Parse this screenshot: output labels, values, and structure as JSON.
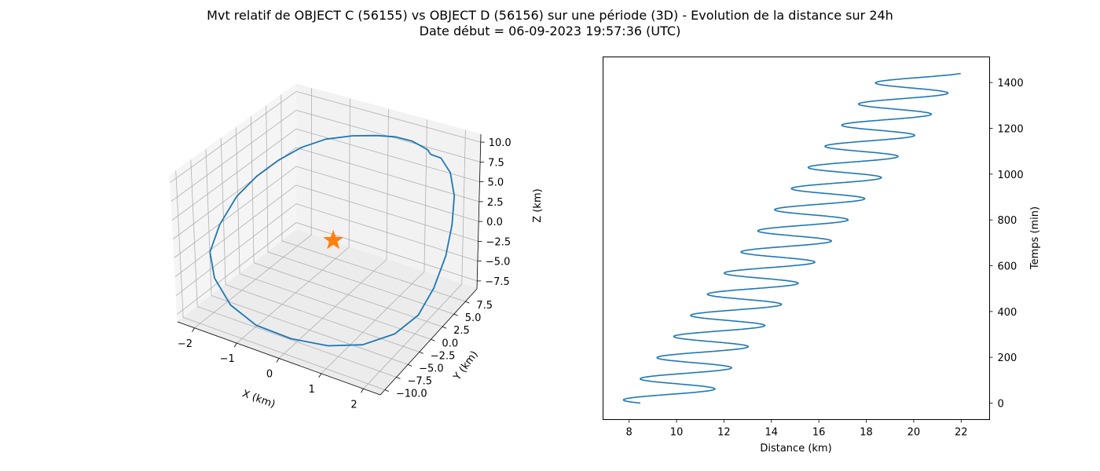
{
  "figure": {
    "title_line1": "Mvt relatif de OBJECT C (56155) vs OBJECT D (56156) sur une période (3D) - Evolution de la distance sur 24h",
    "title_line2": "Date début = 06-09-2023 19:57:36 (UTC)"
  },
  "colors": {
    "series": "#1f77b4",
    "marker": "#ff7f0e",
    "pane": "#f2f2f2",
    "grid": "#b0b0b0"
  },
  "chart_data": [
    {
      "type": "line",
      "projection": "3d",
      "series": [
        {
          "x": [
            1.25,
            1.45,
            1.7,
            1.95,
            2.1,
            2.2,
            2.2,
            2.1,
            1.8,
            1.3,
            0.7,
            0.0,
            -0.7,
            -1.3,
            -1.8,
            -2.1,
            -2.2,
            -2.2,
            -2.05,
            -1.8,
            -1.5,
            -1.1,
            -0.6,
            -0.1,
            0.3,
            0.7,
            0.95,
            1.15,
            1.25
          ],
          "y": [
            9.0,
            9.5,
            9.5,
            8.5,
            7.0,
            5.0,
            2.5,
            0.0,
            -2.5,
            -5.0,
            -7.0,
            -8.5,
            -9.5,
            -9.5,
            -8.5,
            -7.0,
            -4.5,
            -1.5,
            1.0,
            3.0,
            5.0,
            6.5,
            7.8,
            8.7,
            9.2,
            9.4,
            9.3,
            9.2,
            9.0
          ],
          "z": [
            7.5,
            7.0,
            5.5,
            3.5,
            1.0,
            -1.5,
            -4.0,
            -6.0,
            -7.3,
            -8.0,
            -8.0,
            -7.5,
            -6.5,
            -5.0,
            -3.0,
            -1.0,
            1.0,
            3.0,
            4.5,
            5.8,
            6.8,
            7.6,
            8.0,
            8.2,
            8.3,
            8.2,
            8.0,
            7.8,
            7.5
          ]
        }
      ],
      "marker": {
        "symbol": "star",
        "x": 0,
        "y": 0,
        "z": 0
      },
      "xlabel": "X (km)",
      "ylabel": "Y (km)",
      "zlabel": "Z (km)",
      "xlim": [
        -2.4,
        2.4
      ],
      "ylim": [
        -11,
        10
      ],
      "zlim": [
        -8.5,
        11
      ],
      "xticks": [
        -2,
        -1,
        0,
        1,
        2
      ],
      "xtick_labels": [
        "−2",
        "−1",
        "0",
        "1",
        "2"
      ],
      "yticks": [
        -10,
        -7.5,
        -5,
        -2.5,
        0,
        2.5,
        5,
        7.5
      ],
      "ytick_labels": [
        "−10.0",
        "−7.5",
        "−5.0",
        "−2.5",
        "0.0",
        "2.5",
        "5.0",
        "7.5"
      ],
      "zticks": [
        -7.5,
        -5,
        -2.5,
        0,
        2.5,
        5,
        7.5,
        10
      ],
      "ztick_labels": [
        "−7.5",
        "−5.0",
        "−2.5",
        "0.0",
        "2.5",
        "5.0",
        "7.5",
        "10.0"
      ],
      "grid": true
    },
    {
      "type": "line",
      "description": "distance oscillates with period ~92 min while its mean grows linearly",
      "oscillation": {
        "period_min": 92.3,
        "amplitude_start_km": 1.75,
        "amplitude_end_km": 1.7,
        "mean_start_km": 9.4,
        "mean_end_km": 20.4,
        "phase": 3.7,
        "t_start_min": 0,
        "t_end_min": 1440
      },
      "xlabel": "Distance (km)",
      "ylabel": "Temps (min)",
      "xlim": [
        6.9,
        23.2
      ],
      "ylim": [
        -72,
        1512
      ],
      "xticks": [
        8,
        10,
        12,
        14,
        16,
        18,
        20,
        22
      ],
      "xtick_labels": [
        "8",
        "10",
        "12",
        "14",
        "16",
        "18",
        "20",
        "22"
      ],
      "yticks": [
        0,
        200,
        400,
        600,
        800,
        1000,
        1200,
        1400
      ],
      "ytick_labels": [
        "0",
        "200",
        "400",
        "600",
        "800",
        "1000",
        "1200",
        "1400"
      ],
      "grid": false
    }
  ]
}
